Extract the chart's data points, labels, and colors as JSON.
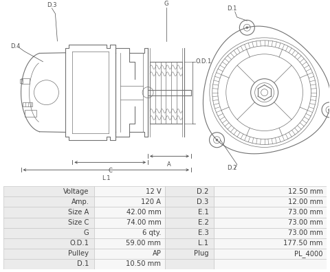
{
  "table_data": [
    [
      "Voltage",
      "12 V",
      "D.2",
      "12.50 mm"
    ],
    [
      "Amp.",
      "120 A",
      "D.3",
      "12.00 mm"
    ],
    [
      "Size A",
      "42.00 mm",
      "E.1",
      "73.00 mm"
    ],
    [
      "Size C",
      "74.00 mm",
      "E.2",
      "73.00 mm"
    ],
    [
      "G",
      "6 qty.",
      "E.3",
      "73.00 mm"
    ],
    [
      "O.D.1",
      "59.00 mm",
      "L.1",
      "177.50 mm"
    ],
    [
      "Pulley",
      "AP",
      "Plug",
      "PL_4000"
    ],
    [
      "D.1",
      "10.50 mm",
      "",
      ""
    ]
  ],
  "table_bg_even": "#ebebeb",
  "table_bg_odd": "#f7f7f7",
  "table_border": "#c8c8c8",
  "text_color": "#3a3a3a",
  "fig_bg": "#ffffff",
  "font_size_table": 7.2,
  "line_color": "#707070",
  "label_color": "#4a4a4a",
  "label_fs": 6.0,
  "dim_color": "#555555"
}
